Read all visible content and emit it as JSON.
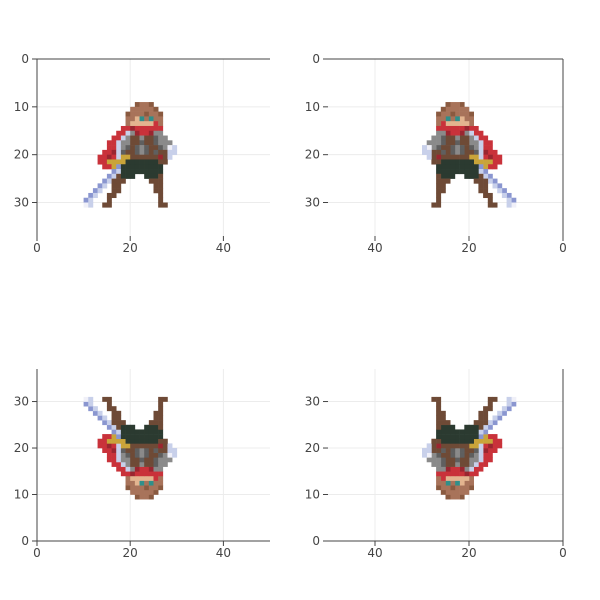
{
  "chart_data": {
    "type": "heatmap",
    "description_free": true,
    "panels": [
      {
        "flip_x": false,
        "flip_y": false,
        "x_range": [
          0,
          50
        ],
        "y_range": [
          0,
          37
        ],
        "y_reversed": true,
        "x_ticks": [
          {
            "value": 0,
            "label": "0"
          },
          {
            "value": 20,
            "label": "20"
          },
          {
            "value": 40,
            "label": "40"
          }
        ],
        "y_ticks": [
          {
            "value": 0,
            "label": "0"
          },
          {
            "value": 10,
            "label": "10"
          },
          {
            "value": 20,
            "label": "20"
          },
          {
            "value": 30,
            "label": "30"
          }
        ]
      },
      {
        "flip_x": true,
        "flip_y": false,
        "x_range": [
          0,
          50
        ],
        "y_range": [
          0,
          37
        ],
        "y_reversed": true,
        "x_ticks": [
          {
            "value": 40,
            "label": "40"
          },
          {
            "value": 20,
            "label": "20"
          },
          {
            "value": 0,
            "label": "0"
          }
        ],
        "y_ticks": [
          {
            "value": 0,
            "label": "0"
          },
          {
            "value": 10,
            "label": "10"
          },
          {
            "value": 20,
            "label": "20"
          },
          {
            "value": 30,
            "label": "30"
          }
        ]
      },
      {
        "flip_x": false,
        "flip_y": true,
        "x_range": [
          0,
          50
        ],
        "y_range": [
          0,
          37
        ],
        "y_reversed": false,
        "x_ticks": [
          {
            "value": 0,
            "label": "0"
          },
          {
            "value": 20,
            "label": "20"
          },
          {
            "value": 40,
            "label": "40"
          }
        ],
        "y_ticks": [
          {
            "value": 0,
            "label": "0"
          },
          {
            "value": 10,
            "label": "10"
          },
          {
            "value": 20,
            "label": "20"
          },
          {
            "value": 30,
            "label": "30"
          }
        ]
      },
      {
        "flip_x": true,
        "flip_y": true,
        "x_range": [
          0,
          50
        ],
        "y_range": [
          0,
          37
        ],
        "y_reversed": false,
        "x_ticks": [
          {
            "value": 40,
            "label": "40"
          },
          {
            "value": 20,
            "label": "20"
          },
          {
            "value": 0,
            "label": "0"
          }
        ],
        "y_ticks": [
          {
            "value": 0,
            "label": "0"
          },
          {
            "value": 10,
            "label": "10"
          },
          {
            "value": 20,
            "label": "20"
          },
          {
            "value": 30,
            "label": "30"
          }
        ]
      }
    ],
    "grid": true,
    "palette": {
      "H": "#a8735a",
      "h": "#8a5a40",
      "S": "#e3b48f",
      "E": "#2f8f8a",
      "R": "#c9323a",
      "r": "#9a2630",
      "B": "#6e4a36",
      "G": "#8a8a8a",
      "g": "#5f5f5f",
      "D": "#2b3a30",
      "Y": "#c9a43a",
      "L": "#c8d0ea",
      "l": "#8a96d0",
      "P": "#f0f0f8"
    },
    "sprite_origin": [
      10,
      9
    ],
    "sprite_rows": [
      "...........hHHh.......",
      "..........HHHHHh......",
      ".........hHHHhHHh.....",
      ".........HHSEHEHH.....",
      ".........HSSSSSRH.....",
      "........RRrRRRRRR.....",
      ".......RRLGrRRrGG.....",
      "......RRLGBBGBBgGG....",
      ".....RRLGGBBgBBgGGG...",
      ".....RRLGgBgGgBBgGPL..",
      "....RRrLgBBgGgBgBBLL..",
      "...RRrRLYYBBBBBBrBL...",
      "...RRYYYYDDDDDDDBB....",
      "....RRYlDDDDDDDDD.....",
      "......lLDDDDDDDDD.....",
      ".....lLBDDD..DDDB.....",
      "....lLBBB.....BBB.....",
      "...lL.BB.......BB.....",
      "..lL..BB.......BB.....",
      ".lL..BB.........B.....",
      "lL...B..........B.....",
      "PL..BB..........BB...."
    ]
  }
}
